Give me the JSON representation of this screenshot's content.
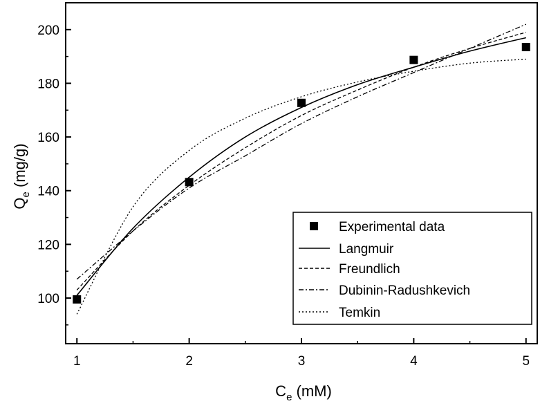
{
  "chart_data": {
    "type": "scatter",
    "title": "",
    "xlabel": {
      "main": "C",
      "sub": "e",
      "unit": " (mM)"
    },
    "ylabel": {
      "main": "Q",
      "sub": "e",
      "unit": " (mg/g)"
    },
    "xlim": [
      0.9,
      5.1
    ],
    "ylim": [
      83,
      210
    ],
    "x_ticks": [
      1,
      2,
      3,
      4,
      5
    ],
    "y_ticks": [
      100,
      120,
      140,
      160,
      180,
      200
    ],
    "grid": false,
    "legend_position": "bottom-right",
    "series": [
      {
        "name": "Experimental data",
        "kind": "marker",
        "color": "#000000",
        "x": [
          1,
          2,
          3,
          4,
          5
        ],
        "y": [
          99.5,
          143.2,
          172.7,
          188.7,
          193.5
        ]
      },
      {
        "name": "Langmuir",
        "kind": "line",
        "dash": "solid",
        "color": "#000000",
        "x": [
          1,
          1.5,
          2,
          2.5,
          3,
          3.5,
          4,
          4.5,
          5
        ],
        "y": [
          101,
          126,
          145,
          160,
          171,
          179.5,
          186,
          192,
          197
        ]
      },
      {
        "name": "Freundlich",
        "kind": "line",
        "dash": "dash",
        "color": "#000000",
        "x": [
          1,
          1.5,
          2,
          2.5,
          3,
          3.5,
          4,
          4.5,
          5
        ],
        "y": [
          103,
          125,
          142,
          156,
          168,
          177.5,
          186,
          193,
          199
        ]
      },
      {
        "name": "Dubinin-Radushkevich",
        "kind": "line",
        "dash": "dashdot",
        "color": "#000000",
        "x": [
          1,
          1.5,
          2,
          2.5,
          3,
          3.5,
          4,
          4.5,
          5
        ],
        "y": [
          107,
          125,
          141,
          153,
          165,
          175,
          184,
          193,
          202
        ]
      },
      {
        "name": "Temkin",
        "kind": "line",
        "dash": "dot",
        "color": "#000000",
        "x": [
          1,
          1.5,
          2,
          2.5,
          3,
          3.5,
          4,
          4.5,
          5
        ],
        "y": [
          94,
          134,
          155,
          167,
          175,
          180.5,
          184.5,
          187.5,
          189
        ]
      }
    ]
  }
}
